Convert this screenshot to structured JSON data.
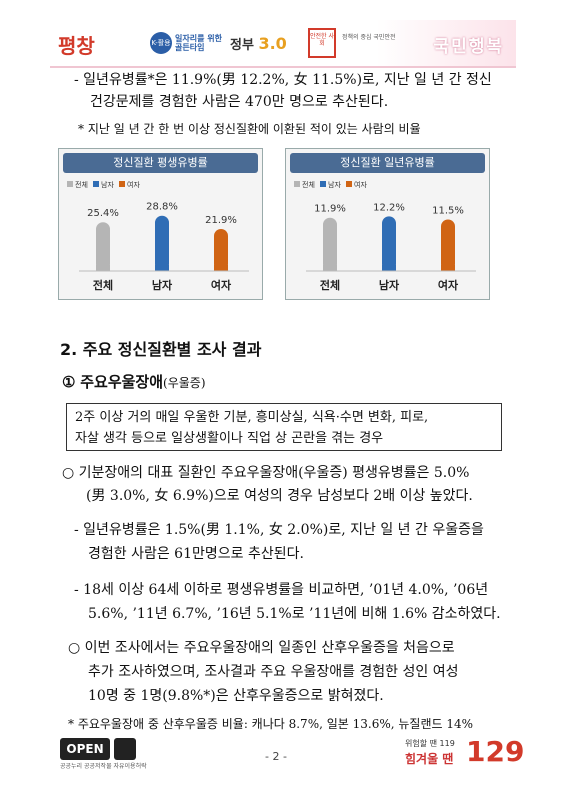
{
  "header": {
    "logo_pyeongchang": "평창",
    "logo_jobs_badge": "K-활용",
    "logo_jobs_text1": "일자리를 위한",
    "logo_jobs_text2": "골든타임",
    "logo_gov": "정부",
    "logo_gov_num": "3.0",
    "logo_safety": "안전한 사회",
    "logo_safety_text": "정책의 중심 국민안전",
    "banner_title": "국민행복"
  },
  "lines": {
    "l1": "- 일년유병률*은 11.9%(男 12.2%, 女 11.5%)로, 지난 일 년 간 정신",
    "l2": "건강문제를 경험한 사람은 470만 명으로 추산된다.",
    "l3": "* 지난 일 년 간 한 번 이상 정신질환에 이환된 적이 있는 사람의 비율",
    "section2": "2. 주요 정신질환별 조사 결과",
    "sub1_num": "①",
    "sub1_title": "주요우울장애",
    "sub1_paren": "(우울증)",
    "box_l1": "2주 이상 거의 매일 우울한 기분, 흥미상실, 식욕·수면 변화, 피로,",
    "box_l2": "자살 생각 등으로 일상생활이나 직업 상 곤란을 겪는 경우",
    "b1_l1": "○ 기분장애의 대표 질환인 주요우울장애(우울증) 평생유병률은 5.0%",
    "b1_l2": "(男 3.0%, 女 6.9%)으로 여성의 경우 남성보다 2배 이상 높았다.",
    "b2_l1": "- 일년유병률은 1.5%(男 1.1%, 女 2.0%)로, 지난 일 년 간 우울증을",
    "b2_l2": "경험한 사람은 61만명으로 추산된다.",
    "b3_l1": "- 18세 이상 64세 이하로 평생유병률을 비교하면, ’01년 4.0%, ’06년",
    "b3_l2": "5.6%, ’11년 6.7%, ’16년 5.1%로 ’11년에 비해 1.6% 감소하였다.",
    "b4_l1": "○ 이번 조사에서는 주요우울장애의 일종인 산후우울증을 처음으로",
    "b4_l2": "추가 조사하였으며, 조사결과 주요 우울장애를 경험한 성인 여성",
    "b4_l3": "10명 중 1명(9.8%*)은 산후우울증으로 밝혀졌다.",
    "footnote": "* 주요우울장애 중 산후우울증 비율: 캐나다 8.7%, 일본 13.6%, 뉴질랜드 14%"
  },
  "footer": {
    "open_label": "OPEN",
    "open_note": "공공누리  공공저작물 자유이용허락",
    "page": "- 2 -",
    "hotline_text": "위험할 땐 119",
    "hotline_text2": "힘겨울 땐",
    "hotline_num": "129"
  },
  "chart_data": [
    {
      "type": "bar",
      "title": "정신질환 평생유병률",
      "categories": [
        "전체",
        "남자",
        "여자"
      ],
      "values": [
        25.4,
        28.8,
        21.9
      ],
      "value_labels": [
        "25.4%",
        "28.8%",
        "21.9%"
      ],
      "legend": [
        "전체",
        "남자",
        "여자"
      ],
      "colors": [
        "#b5b5b5",
        "#2f6db5",
        "#d06414"
      ],
      "ylim": [
        0,
        35
      ]
    },
    {
      "type": "bar",
      "title": "정신질환 일년유병률",
      "categories": [
        "전체",
        "남자",
        "여자"
      ],
      "values": [
        11.9,
        12.2,
        11.5
      ],
      "value_labels": [
        "11.9%",
        "12.2%",
        "11.5%"
      ],
      "legend": [
        "전체",
        "남자",
        "여자"
      ],
      "colors": [
        "#b5b5b5",
        "#2f6db5",
        "#d06414"
      ],
      "ylim": [
        0,
        15
      ]
    }
  ]
}
